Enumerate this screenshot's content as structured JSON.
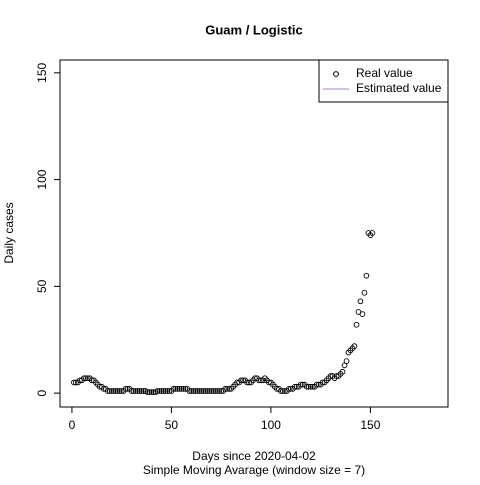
{
  "chart_data": {
    "type": "scatter",
    "title": "Guam / Logistic",
    "xlabel": "Days since 2020-04-02",
    "subtitle": "Simple Moving Avarage (window size = 7)",
    "ylabel": "Daily cases",
    "x": [
      1,
      2,
      3,
      4,
      5,
      6,
      7,
      8,
      9,
      10,
      11,
      12,
      13,
      14,
      15,
      16,
      17,
      18,
      19,
      20,
      21,
      22,
      23,
      24,
      25,
      26,
      27,
      28,
      29,
      30,
      31,
      32,
      33,
      34,
      35,
      36,
      37,
      38,
      39,
      40,
      41,
      42,
      43,
      44,
      45,
      46,
      47,
      48,
      49,
      50,
      51,
      52,
      53,
      54,
      55,
      56,
      57,
      58,
      59,
      60,
      61,
      62,
      63,
      64,
      65,
      66,
      67,
      68,
      69,
      70,
      71,
      72,
      73,
      74,
      75,
      76,
      77,
      78,
      79,
      80,
      81,
      82,
      83,
      84,
      85,
      86,
      87,
      88,
      89,
      90,
      91,
      92,
      93,
      94,
      95,
      96,
      97,
      98,
      99,
      100,
      101,
      102,
      103,
      104,
      105,
      106,
      107,
      108,
      109,
      110,
      111,
      112,
      113,
      114,
      115,
      116,
      117,
      118,
      119,
      120,
      121,
      122,
      123,
      124,
      125,
      126,
      127,
      128,
      129,
      130,
      131,
      132,
      133,
      134,
      135,
      136,
      137,
      138,
      139,
      140,
      141,
      142,
      143,
      144,
      145,
      146,
      147,
      148,
      149,
      150,
      151
    ],
    "series": [
      {
        "name": "Real value",
        "color": "#000000",
        "mark": "circle",
        "values": [
          5,
          5,
          5,
          6,
          6,
          7,
          7,
          7,
          7,
          6,
          6,
          5,
          4,
          3,
          3,
          2,
          2,
          1,
          1,
          1,
          1,
          1,
          1,
          1,
          1,
          1,
          2,
          2,
          2,
          1,
          1,
          1,
          1,
          1,
          1,
          1,
          1,
          0.5,
          0.5,
          0.5,
          0.5,
          0.5,
          1,
          1,
          1,
          1,
          1,
          1,
          1,
          1,
          2,
          2,
          2,
          2,
          2,
          2,
          2,
          2,
          1,
          1,
          1,
          1,
          1,
          1,
          1,
          1,
          1,
          1,
          1,
          1,
          1,
          1,
          1,
          1,
          1,
          1,
          2,
          2,
          2,
          2,
          3,
          4,
          5,
          5,
          6,
          6,
          6,
          5,
          5,
          5,
          6,
          7,
          7,
          6,
          6,
          6,
          7,
          6,
          5,
          5,
          4,
          3,
          2,
          2,
          1,
          1,
          1,
          1,
          2,
          2,
          2,
          3,
          3,
          3,
          4,
          4,
          4,
          3,
          3,
          3,
          3,
          3,
          4,
          4,
          4,
          5,
          5,
          6,
          7,
          8,
          8,
          7,
          8,
          8,
          9,
          10,
          13,
          15,
          19,
          20,
          21,
          22,
          32,
          38,
          43,
          37,
          47,
          55,
          75,
          74,
          75
        ]
      },
      {
        "name": "Estimated value",
        "color": "#b57edc",
        "mark": "line"
      }
    ],
    "xlim": [
      -6,
      189
    ],
    "ylim": [
      -6.5,
      156
    ],
    "xticks": [
      0,
      50,
      100,
      150
    ],
    "yticks": [
      0,
      50,
      100,
      150
    ],
    "legend": "top-right"
  }
}
